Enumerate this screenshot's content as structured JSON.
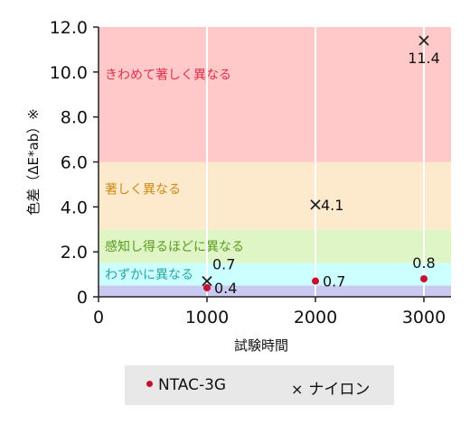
{
  "chart_data": {
    "type": "scatter",
    "xlabel": "試験時間",
    "ylabel": "色差（ΔE*ab）※",
    "xlim": [
      0,
      3250
    ],
    "ylim": [
      0,
      12.0
    ],
    "x_ticks": [
      "0",
      "1000",
      "2000",
      "3000"
    ],
    "y_ticks": [
      "0",
      "2.0",
      "4.0",
      "6.0",
      "8.0",
      "10.0",
      "12.0"
    ],
    "grid": "vertical",
    "bands": [
      {
        "label": "",
        "from": 0,
        "to": 0.5,
        "color": "#c9c9f2"
      },
      {
        "label": "わずかに異なる",
        "from": 0.5,
        "to": 1.5,
        "color": "#ccffff",
        "text_color": "#2aa6a0"
      },
      {
        "label": "感知し得るほどに異なる",
        "from": 1.5,
        "to": 3.0,
        "color": "#e0f5c6",
        "text_color": "#5a9b1f"
      },
      {
        "label": "著しく異なる",
        "from": 3.0,
        "to": 6.0,
        "color": "#fde9cc",
        "text_color": "#d08a16"
      },
      {
        "label": "きわめて著しく異なる",
        "from": 6.0,
        "to": 12.0,
        "color": "#ffc9c9",
        "text_color": "#e0304a"
      }
    ],
    "series": [
      {
        "name": "NTAC-3G",
        "marker": "dot",
        "color": "#c8102e",
        "x": [
          1000,
          2000,
          3000
        ],
        "y": [
          0.4,
          0.7,
          0.8
        ],
        "labels": [
          "0.4",
          "0.7",
          "0.8"
        ]
      },
      {
        "name": "ナイロン",
        "marker": "x",
        "color": "#222222",
        "x": [
          1000,
          2000,
          3000
        ],
        "y": [
          0.7,
          4.1,
          11.4
        ],
        "labels": [
          "0.7",
          "4.1",
          "11.4"
        ]
      }
    ]
  },
  "legend": {
    "ntac_label": "NTAC-3G",
    "nylon_label": "ナイロン"
  }
}
